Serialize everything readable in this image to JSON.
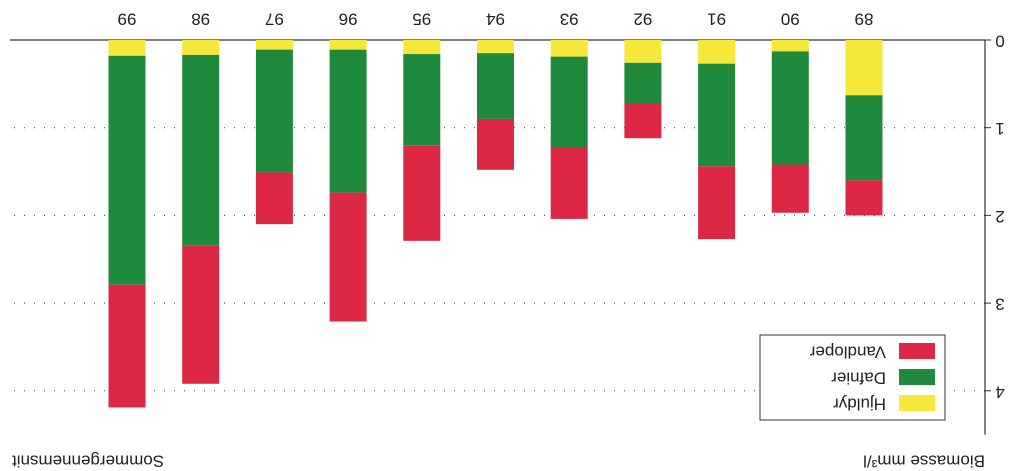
{
  "chart_data": {
    "type": "stacked_bar",
    "y_label": "Biomasse mm³/l",
    "note": "Sommergennemsnit",
    "categories": [
      "89",
      "90",
      "91",
      "92",
      "93",
      "94",
      "95",
      "96",
      "97",
      "98",
      "99"
    ],
    "series": [
      {
        "name": "Hjuldyr",
        "color": "#f5e83a",
        "values": [
          0.63,
          0.13,
          0.27,
          0.26,
          0.19,
          0.15,
          0.16,
          0.11,
          0.11,
          0.17,
          0.18
        ]
      },
      {
        "name": "Dafnier",
        "color": "#1f8a3c",
        "values": [
          0.97,
          1.29,
          1.17,
          0.47,
          1.03,
          0.75,
          1.04,
          1.63,
          1.4,
          2.17,
          2.61
        ]
      },
      {
        "name": "Vandloper",
        "color": "#dc2845",
        "values": [
          0.4,
          0.55,
          0.83,
          0.39,
          0.82,
          0.58,
          1.09,
          1.47,
          0.59,
          1.58,
          1.4
        ]
      }
    ],
    "ylim": [
      0,
      4.5
    ],
    "yticks": [
      0,
      1,
      2,
      3,
      4
    ],
    "grid": true,
    "legend": "upper left"
  }
}
